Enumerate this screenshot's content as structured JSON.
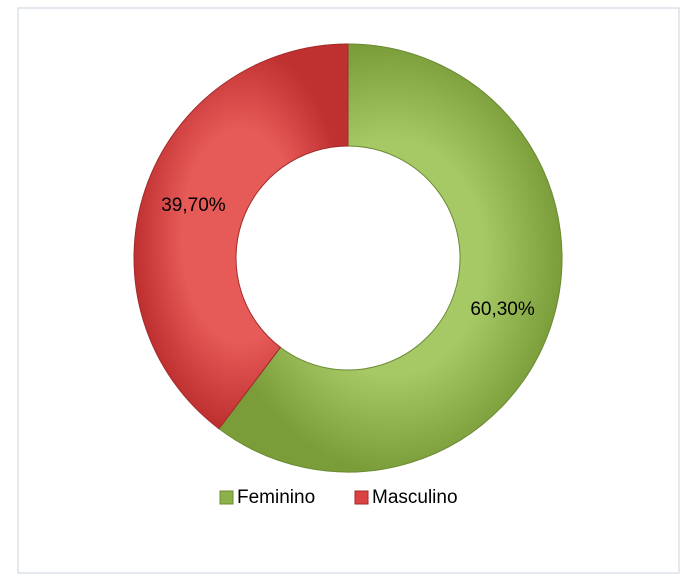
{
  "chart_data": {
    "type": "donut",
    "categories": [
      "Feminino",
      "Masculino"
    ],
    "values": [
      60.3,
      39.7
    ],
    "value_labels": [
      "60,30%",
      "39,70%"
    ],
    "colors": [
      "#8db14a",
      "#d94343"
    ],
    "legend": "bottom"
  }
}
